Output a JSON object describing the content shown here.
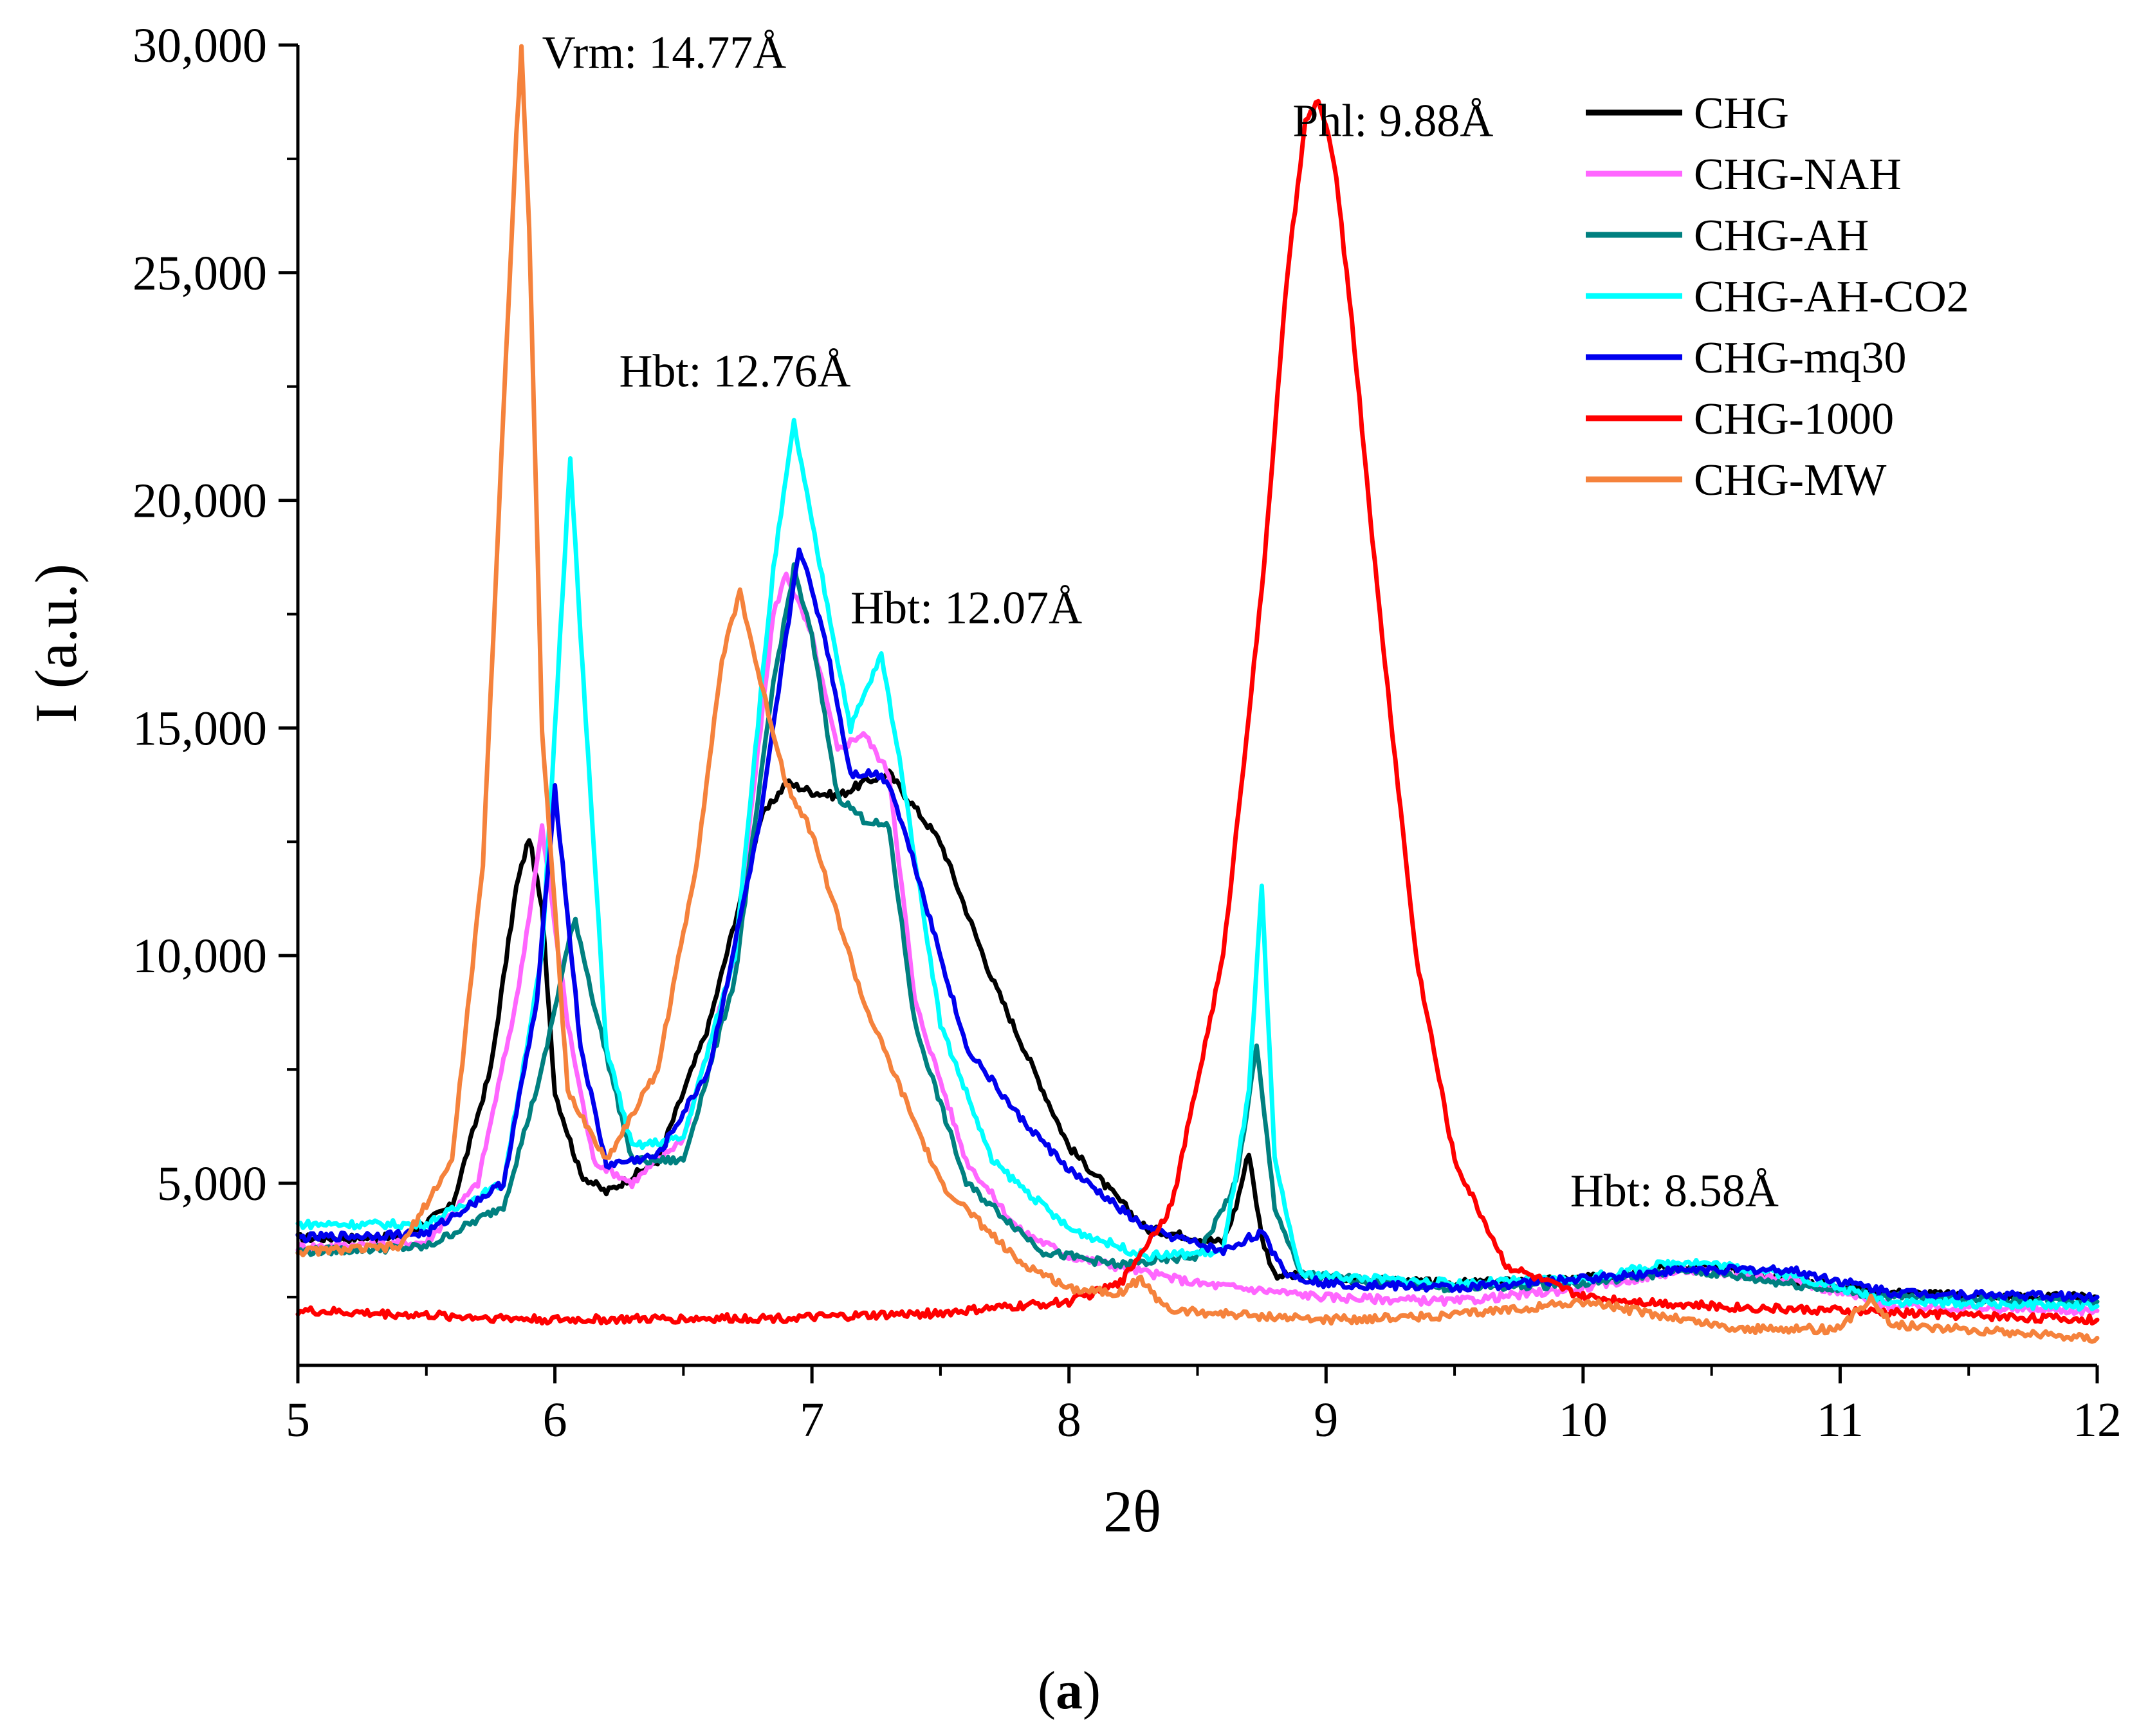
{
  "chart_data": {
    "type": "line",
    "xlabel": "2θ",
    "ylabel": "I (a.u.)",
    "xlim": [
      5,
      12
    ],
    "ylim": [
      1000,
      30000
    ],
    "x_ticks": [
      5,
      6,
      7,
      8,
      9,
      10,
      11,
      12
    ],
    "x_tick_labels": [
      "5",
      "6",
      "7",
      "8",
      "9",
      "10",
      "11",
      "12"
    ],
    "y_ticks": [
      5000,
      10000,
      15000,
      20000,
      25000,
      30000
    ],
    "y_tick_labels": [
      "5,000",
      "10,000",
      "15,000",
      "20,000",
      "25,000",
      "30,000"
    ],
    "legend_position": "top-right",
    "annotations": [
      {
        "text": "Vrm: 14.77Å",
        "x": 5.95,
        "y": 29500
      },
      {
        "text": "Phl: 9.88Å",
        "x": 8.87,
        "y": 28000
      },
      {
        "text": "Hbt: 12.76Å",
        "x": 6.25,
        "y": 22500
      },
      {
        "text": "Hbt: 12.07Å",
        "x": 7.15,
        "y": 17300
      },
      {
        "text": "Hbt: 8.58Å",
        "x": 9.95,
        "y": 4500
      }
    ],
    "panel_label": {
      "open": "(",
      "letter": "a",
      "close": ")"
    },
    "series": [
      {
        "name": "CHG",
        "color": "#000000",
        "x": [
          5.0,
          5.4,
          5.6,
          5.75,
          5.85,
          5.9,
          5.95,
          6.0,
          6.1,
          6.2,
          6.4,
          6.6,
          6.8,
          6.9,
          7.0,
          7.1,
          7.2,
          7.3,
          7.5,
          7.7,
          8.0,
          8.3,
          8.6,
          8.65,
          8.7,
          8.75,
          8.8,
          9.0,
          9.5,
          10.0,
          10.4,
          10.8,
          11.2,
          11.6,
          12.0
        ],
        "y": [
          3800,
          3800,
          4500,
          7500,
          11500,
          12600,
          11000,
          7000,
          5200,
          4800,
          5500,
          8500,
          13000,
          13800,
          13600,
          13500,
          13800,
          14000,
          12500,
          9500,
          5800,
          4000,
          3700,
          4500,
          5700,
          3800,
          3000,
          2900,
          2800,
          2900,
          3200,
          2900,
          2600,
          2500,
          2500
        ]
      },
      {
        "name": "CHG-NAH",
        "color": "#ff66ff",
        "x": [
          5.0,
          5.5,
          5.7,
          5.85,
          5.95,
          6.05,
          6.15,
          6.3,
          6.5,
          6.7,
          6.85,
          6.9,
          7.0,
          7.1,
          7.2,
          7.3,
          7.4,
          7.6,
          7.8,
          8.0,
          8.5,
          9.0,
          9.5,
          10.0,
          10.4,
          10.8,
          11.2,
          12.0
        ],
        "y": [
          3600,
          3700,
          5000,
          9000,
          12800,
          8500,
          5500,
          5000,
          6000,
          10000,
          17500,
          18400,
          17000,
          14500,
          14900,
          14000,
          9000,
          5500,
          4000,
          3400,
          2800,
          2500,
          2400,
          2700,
          3100,
          2900,
          2300,
          2200
        ]
      },
      {
        "name": "CHG-AH",
        "color": "#008080",
        "x": [
          5.0,
          5.5,
          5.8,
          5.95,
          6.05,
          6.08,
          6.15,
          6.3,
          6.5,
          6.7,
          6.85,
          6.93,
          7.0,
          7.1,
          7.2,
          7.3,
          7.4,
          7.6,
          7.9,
          8.2,
          8.5,
          8.65,
          8.73,
          8.8,
          8.9,
          9.5,
          10.0,
          10.4,
          10.8,
          11.2,
          12.0
        ],
        "y": [
          3500,
          3600,
          4500,
          7500,
          10200,
          10800,
          9000,
          5500,
          5500,
          9500,
          16000,
          18500,
          17000,
          13500,
          13000,
          12800,
          8500,
          5000,
          3500,
          3200,
          3400,
          5000,
          8000,
          4500,
          3000,
          2700,
          2800,
          3100,
          2800,
          2500,
          2400
        ]
      },
      {
        "name": "CHG-AH-CO2",
        "color": "#00ffff",
        "x": [
          5.0,
          5.5,
          5.8,
          5.95,
          6.03,
          6.06,
          6.1,
          6.2,
          6.3,
          6.5,
          6.7,
          6.85,
          6.93,
          7.0,
          7.15,
          7.27,
          7.35,
          7.5,
          7.7,
          8.0,
          8.3,
          8.6,
          8.7,
          8.75,
          8.8,
          8.9,
          9.5,
          10.0,
          10.4,
          10.8,
          11.2,
          12.0
        ],
        "y": [
          4100,
          4100,
          5000,
          10000,
          18000,
          21000,
          17000,
          8000,
          5800,
          6000,
          10000,
          18500,
          21700,
          19500,
          15000,
          16600,
          14000,
          8500,
          5500,
          4000,
          3400,
          3500,
          7000,
          11500,
          5500,
          3000,
          2800,
          2900,
          3300,
          3000,
          2400,
          2300
        ]
      },
      {
        "name": "CHG-mq30",
        "color": "#0000ee",
        "x": [
          5.0,
          5.5,
          5.8,
          5.93,
          6.0,
          6.1,
          6.2,
          6.4,
          6.6,
          6.8,
          6.95,
          7.05,
          7.15,
          7.25,
          7.3,
          7.4,
          7.6,
          7.8,
          8.0,
          8.3,
          8.6,
          8.7,
          8.75,
          8.85,
          9.0,
          9.5,
          10.0,
          10.4,
          10.8,
          11.2,
          12.0
        ],
        "y": [
          3800,
          3900,
          5000,
          9000,
          13700,
          8000,
          5400,
          5600,
          7500,
          13000,
          19000,
          17000,
          14000,
          14000,
          13800,
          12000,
          8000,
          6500,
          5300,
          4000,
          3500,
          3800,
          3900,
          3000,
          2800,
          2700,
          2900,
          3100,
          3100,
          2600,
          2500
        ]
      },
      {
        "name": "CHG-1000",
        "color": "#ff0000",
        "x": [
          5.0,
          6.0,
          7.0,
          7.5,
          8.0,
          8.2,
          8.4,
          8.6,
          8.75,
          8.85,
          8.92,
          8.97,
          9.03,
          9.1,
          9.2,
          9.35,
          9.5,
          9.7,
          10.0,
          10.5,
          11.0,
          11.5,
          12.0
        ],
        "y": [
          2200,
          2000,
          2050,
          2150,
          2400,
          2800,
          4500,
          10000,
          18000,
          25000,
          28300,
          28800,
          27500,
          24000,
          18000,
          10000,
          5500,
          3200,
          2500,
          2300,
          2200,
          2100,
          2000
        ]
      },
      {
        "name": "CHG-MW",
        "color": "#f5823c",
        "x": [
          5.0,
          5.4,
          5.6,
          5.72,
          5.8,
          5.85,
          5.87,
          5.9,
          5.95,
          6.05,
          6.2,
          6.4,
          6.55,
          6.65,
          6.72,
          6.8,
          6.9,
          7.0,
          7.2,
          7.5,
          7.8,
          8.0,
          8.2,
          8.28,
          8.32,
          8.4,
          9.0,
          9.5,
          10.0,
          10.3,
          10.6,
          11.0,
          11.07,
          11.12,
          11.2,
          12.0
        ],
        "y": [
          3500,
          3600,
          5500,
          12000,
          22000,
          28000,
          30000,
          26000,
          15000,
          7000,
          5500,
          7500,
          12000,
          16500,
          18000,
          16000,
          13800,
          12700,
          9000,
          5000,
          3300,
          2700,
          2600,
          2900,
          2600,
          2200,
          2000,
          2100,
          2400,
          2100,
          1800,
          1800,
          2200,
          2500,
          1900,
          1600
        ]
      }
    ]
  }
}
